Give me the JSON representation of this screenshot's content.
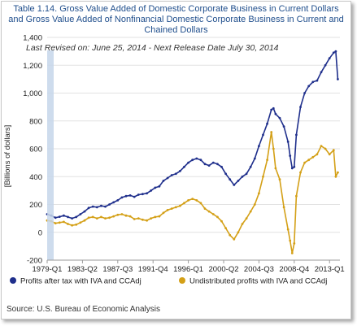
{
  "title_line1": "Table 1.14. Gross Value Added of Domestic Corporate Business in Current Dollars",
  "title_line2": "and Gross Value Added of Nonfinancial Domestic Corporate Business in Current and",
  "title_line3": "Chained Dollars",
  "revised": "Last Revised on: June 25, 2014 - Next Release Date July 30, 2014",
  "source": "Source: U.S. Bureau of Economic Analysis",
  "chart_data": {
    "type": "line",
    "ylabel": "[Billions of dollars]",
    "ylim": [
      -200,
      1400
    ],
    "yticks": [
      -200,
      0,
      200,
      400,
      600,
      800,
      1000,
      1200,
      1400
    ],
    "ytick_labels": [
      "-200",
      "0",
      "200",
      "400",
      "600",
      "800",
      "1,000",
      "1,200",
      "1,400"
    ],
    "xtick_labels": [
      "1979-Q1",
      "1983-Q2",
      "1987-Q3",
      "1991-Q4",
      "1996-Q1",
      "2000-Q2",
      "2004-Q3",
      "2008-Q4",
      "2013-Q1"
    ],
    "xtick_positions": [
      1979.0,
      1983.25,
      1987.5,
      1991.75,
      1996.0,
      2000.25,
      2004.5,
      2008.75,
      2013.0
    ],
    "xlim": [
      1979.0,
      2014.25
    ],
    "legend_position": "bottom",
    "grid": "horizontal",
    "series": [
      {
        "name": "Profits after tax with IVA and CCAdj",
        "color": "#1f2f8c",
        "x": [
          1979.0,
          1979.5,
          1980.0,
          1980.5,
          1981.0,
          1981.5,
          1982.0,
          1982.5,
          1983.0,
          1983.5,
          1984.0,
          1984.5,
          1985.0,
          1985.5,
          1986.0,
          1986.5,
          1987.0,
          1987.5,
          1988.0,
          1988.5,
          1989.0,
          1989.5,
          1990.0,
          1990.5,
          1991.0,
          1991.5,
          1992.0,
          1992.5,
          1993.0,
          1993.5,
          1994.0,
          1994.5,
          1995.0,
          1995.5,
          1996.0,
          1996.5,
          1997.0,
          1997.5,
          1998.0,
          1998.5,
          1999.0,
          1999.5,
          2000.0,
          2000.5,
          2001.0,
          2001.5,
          2002.0,
          2002.5,
          2003.0,
          2003.5,
          2004.0,
          2004.5,
          2005.0,
          2005.5,
          2006.0,
          2006.25,
          2006.5,
          2007.0,
          2007.5,
          2008.0,
          2008.25,
          2008.5,
          2008.75,
          2009.0,
          2009.5,
          2010.0,
          2010.5,
          2011.0,
          2011.5,
          2012.0,
          2012.5,
          2013.0,
          2013.5,
          2013.75,
          2014.0
        ],
        "values": [
          130,
          120,
          105,
          112,
          120,
          110,
          100,
          110,
          130,
          150,
          175,
          185,
          180,
          190,
          185,
          200,
          215,
          230,
          250,
          260,
          265,
          255,
          270,
          275,
          280,
          300,
          320,
          330,
          370,
          390,
          410,
          420,
          440,
          470,
          500,
          520,
          530,
          520,
          490,
          480,
          500,
          490,
          470,
          420,
          380,
          340,
          370,
          400,
          420,
          470,
          530,
          620,
          700,
          780,
          880,
          890,
          850,
          820,
          760,
          650,
          550,
          460,
          470,
          700,
          900,
          1000,
          1050,
          1080,
          1090,
          1150,
          1200,
          1250,
          1290,
          1300,
          1100
        ]
      },
      {
        "name": "Undistributed profits with IVA and CCAdj",
        "color": "#d4a017",
        "x": [
          1979.0,
          1979.5,
          1980.0,
          1980.5,
          1981.0,
          1981.5,
          1982.0,
          1982.5,
          1983.0,
          1983.5,
          1984.0,
          1984.5,
          1985.0,
          1985.5,
          1986.0,
          1986.5,
          1987.0,
          1987.5,
          1988.0,
          1988.5,
          1989.0,
          1989.5,
          1990.0,
          1990.5,
          1991.0,
          1991.5,
          1992.0,
          1992.5,
          1993.0,
          1993.5,
          1994.0,
          1994.5,
          1995.0,
          1995.5,
          1996.0,
          1996.5,
          1997.0,
          1997.5,
          1998.0,
          1998.5,
          1999.0,
          1999.5,
          2000.0,
          2000.5,
          2001.0,
          2001.5,
          2002.0,
          2002.5,
          2003.0,
          2003.5,
          2004.0,
          2004.5,
          2005.0,
          2005.5,
          2006.0,
          2006.25,
          2006.5,
          2007.0,
          2007.5,
          2008.0,
          2008.25,
          2008.5,
          2008.75,
          2009.0,
          2009.5,
          2010.0,
          2010.5,
          2011.0,
          2011.5,
          2012.0,
          2012.5,
          2013.0,
          2013.5,
          2013.75,
          2014.0
        ],
        "values": [
          85,
          80,
          65,
          70,
          75,
          60,
          50,
          55,
          70,
          85,
          105,
          110,
          100,
          110,
          100,
          105,
          115,
          125,
          130,
          120,
          115,
          95,
          100,
          90,
          85,
          100,
          110,
          115,
          140,
          160,
          170,
          180,
          190,
          210,
          230,
          240,
          230,
          210,
          170,
          150,
          130,
          110,
          80,
          30,
          -20,
          -50,
          0,
          60,
          100,
          150,
          200,
          280,
          400,
          520,
          720,
          600,
          460,
          380,
          180,
          20,
          -60,
          -150,
          -80,
          260,
          430,
          500,
          520,
          540,
          560,
          620,
          600,
          560,
          590,
          400,
          430
        ]
      }
    ]
  }
}
